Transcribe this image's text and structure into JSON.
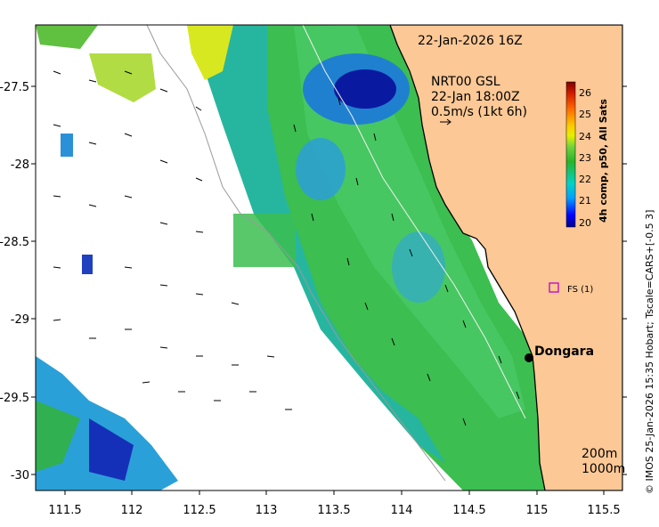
{
  "map": {
    "date_label": "22-Jan-2026 16Z",
    "current_model": "NRT00 GSL",
    "current_time": "22-Jan 18:00Z",
    "current_scale": "0.5m/s (1kt 6h)",
    "place_label": "Dongara",
    "fs_label": "FS (1)",
    "isobath_shallow": "200m",
    "isobath_deep": "1000m",
    "credit": "© IMOS 25-Jan-2026 15:35 Hobart; Tscale=CARS+[-0.5 3]",
    "colorbar_title": "4h comp, p50, All Sats",
    "colorbar_ticks": [
      "26",
      "25",
      "24",
      "23",
      "22",
      "21",
      "20"
    ],
    "colorbar_range": [
      20,
      26.5
    ],
    "x_ticks": [
      "111.5",
      "112",
      "112.5",
      "113",
      "113.5",
      "114",
      "114.5",
      "115",
      "115.5"
    ],
    "y_ticks": [
      "-27.5",
      "-28",
      "-28.5",
      "-29",
      "-29.5",
      "-30"
    ],
    "colors": {
      "land": "#fbc896",
      "no_data": "#ffffff",
      "coast": "#000000",
      "isobath": "#aaaaaa",
      "fs_marker": "#c000c0"
    }
  }
}
